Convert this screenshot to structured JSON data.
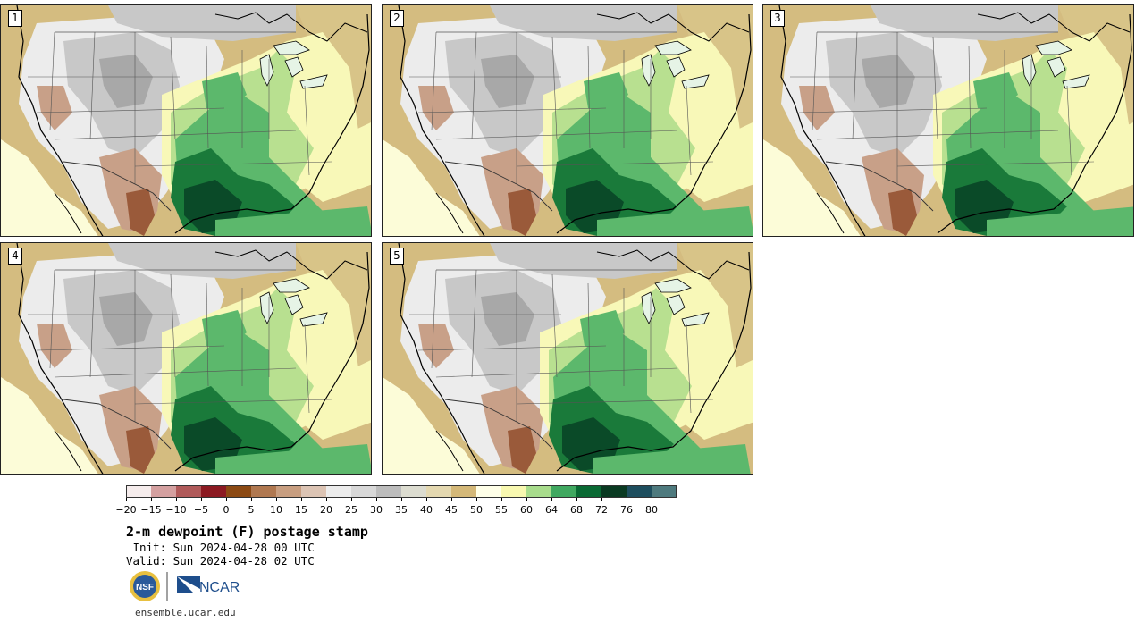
{
  "panels": [
    {
      "label": "1",
      "variant": 0
    },
    {
      "label": "2",
      "variant": 1
    },
    {
      "label": "3",
      "variant": 2
    },
    {
      "label": "4",
      "variant": 3
    },
    {
      "label": "5",
      "variant": 4
    }
  ],
  "colorbar": {
    "ticks": [
      "−20",
      "−15",
      "−10",
      "−5",
      "0",
      "5",
      "10",
      "15",
      "20",
      "25",
      "30",
      "35",
      "40",
      "45",
      "50",
      "55",
      "60",
      "64",
      "68",
      "72",
      "76",
      "80"
    ],
    "colors": [
      "#f5ecec",
      "#d4a0a0",
      "#b05a5a",
      "#8c1a22",
      "#8c4a14",
      "#b07850",
      "#c89e80",
      "#dcc4b4",
      "#ececec",
      "#d8d8d8",
      "#bcbcbc",
      "#dcdcd0",
      "#e4d8b0",
      "#d4b878",
      "#ffffe8",
      "#f8f8b0",
      "#a8dc8c",
      "#40a860",
      "#0a6a34",
      "#0a3a22",
      "#1e4e5e",
      "#4e7a7e"
    ]
  },
  "map_colors": {
    "ocean_warm": "#fcfcd8",
    "ocean_cool": "#d8c488",
    "arid_light": "#ececec",
    "arid_mid": "#c8c8c8",
    "arid_dark": "#a8a8a8",
    "mountain_brown": "#c8a088",
    "deep_brown": "#9a5a3a",
    "tan": "#d4bc80",
    "pale_yellow": "#f8f8b8",
    "light_green": "#b8e090",
    "mid_green": "#5cb86c",
    "dark_green": "#1a7a3a",
    "deepest_green": "#0a4a28"
  },
  "title": "2-m dewpoint (F) postage stamp",
  "init_text": " Init: Sun 2024-04-28 00 UTC",
  "valid_text": "Valid: Sun 2024-04-28 02 UTC",
  "logos": {
    "nsf": "NSF",
    "ncar": "NCAR"
  },
  "site": "ensemble.ucar.edu"
}
